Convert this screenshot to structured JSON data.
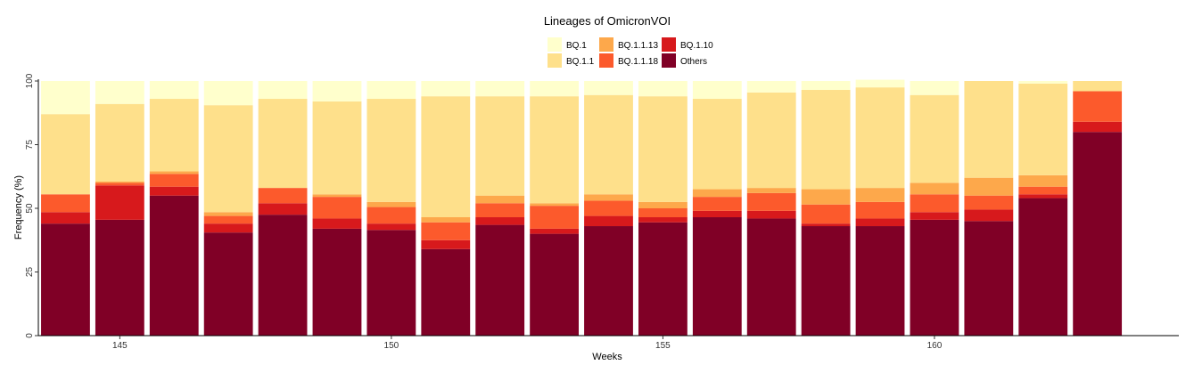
{
  "chart_data": {
    "type": "bar",
    "stacked": true,
    "title": "Lineages of OmicronVOI",
    "xlabel": "Weeks",
    "ylabel": "Frequency (%)",
    "ylim": [
      0,
      100
    ],
    "xlim": [
      143.5,
      164.5
    ],
    "x_ticks": [
      145,
      150,
      155,
      160
    ],
    "y_ticks": [
      0,
      25,
      50,
      75,
      100
    ],
    "grid": false,
    "legend_position": "top",
    "x": [
      144,
      145,
      146,
      147,
      148,
      149,
      150,
      151,
      152,
      153,
      154,
      155,
      156,
      157,
      158,
      159,
      160,
      161,
      162,
      163
    ],
    "series": [
      {
        "name": "Others",
        "color": "#800026",
        "values": [
          44,
          45.5,
          55,
          40.5,
          47.5,
          42,
          41.5,
          34,
          43.5,
          40,
          43,
          44.5,
          46.5,
          46,
          43,
          43,
          45.5,
          45,
          54,
          80
        ]
      },
      {
        "name": "BQ.1.10",
        "color": "#D7191C",
        "values": [
          4.5,
          13.5,
          3.5,
          3.5,
          4.5,
          4,
          2.5,
          3.5,
          3,
          2,
          4,
          2,
          2.5,
          3,
          1,
          3,
          3,
          4.5,
          1.5,
          4
        ]
      },
      {
        "name": "BQ.1.1.18",
        "color": "#FC5A2C",
        "values": [
          7,
          1,
          5,
          3,
          6,
          8.5,
          6.5,
          7,
          5.5,
          9,
          6,
          3.5,
          5.5,
          7,
          7.5,
          6.5,
          7,
          5.5,
          3,
          12
        ]
      },
      {
        "name": "BQ.1.1.13",
        "color": "#FDA84B",
        "values": [
          0,
          0.5,
          1,
          1.5,
          0,
          1,
          2,
          2,
          3,
          1,
          2.5,
          2.5,
          3,
          2,
          6,
          5.5,
          4.5,
          7,
          4.5,
          0
        ]
      },
      {
        "name": "BQ.1.1",
        "color": "#FEE08B",
        "values": [
          31.5,
          30.5,
          28.5,
          42,
          35,
          36.5,
          40.5,
          47.5,
          39,
          42,
          39,
          41.5,
          35.5,
          37.5,
          39,
          39.5,
          34.5,
          38,
          36,
          4
        ]
      },
      {
        "name": "BQ.1",
        "color": "#FFFFCC",
        "values": [
          13,
          9,
          7,
          9.5,
          7,
          8,
          7,
          6,
          6,
          6,
          5.5,
          6,
          7,
          4.5,
          3.5,
          3,
          5.5,
          0,
          1,
          0
        ]
      }
    ],
    "legend": [
      {
        "name": "BQ.1",
        "color": "#FFFFCC"
      },
      {
        "name": "BQ.1.1",
        "color": "#FEE08B"
      },
      {
        "name": "BQ.1.1.13",
        "color": "#FDA84B"
      },
      {
        "name": "BQ.1.1.18",
        "color": "#FC5A2C"
      },
      {
        "name": "BQ.1.10",
        "color": "#D7191C"
      },
      {
        "name": "Others",
        "color": "#800026"
      }
    ]
  }
}
